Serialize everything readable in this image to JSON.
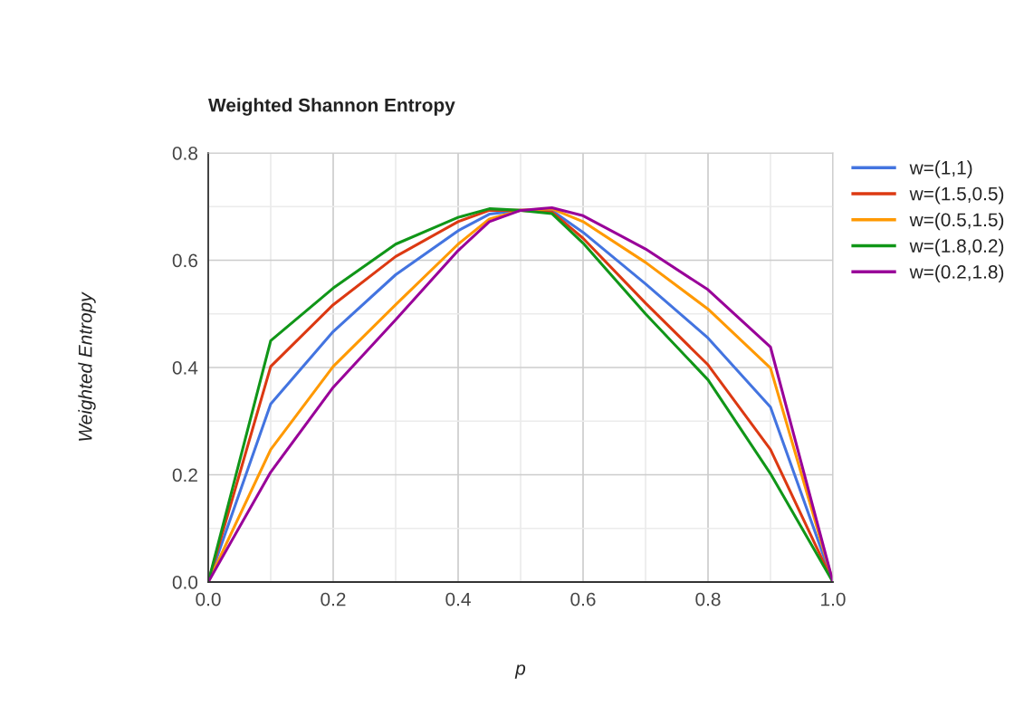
{
  "chart_data": {
    "type": "line",
    "title": "Weighted Shannon Entropy",
    "xlabel": "p",
    "ylabel": "Weighted Entropy",
    "x": [
      0,
      0.1,
      0.2,
      0.3,
      0.4,
      0.45,
      0.5,
      0.55,
      0.6,
      0.7,
      0.8,
      0.9,
      1.0
    ],
    "series": [
      {
        "name": "w=(1,1)",
        "color": "#4374e0",
        "values": [
          0,
          0.332,
          0.467,
          0.573,
          0.655,
          0.686,
          0.693,
          0.693,
          0.652,
          0.556,
          0.455,
          0.326,
          0
        ]
      },
      {
        "name": "w=(1.5,0.5)",
        "color": "#dc3912",
        "values": [
          0,
          0.402,
          0.517,
          0.607,
          0.672,
          0.693,
          0.693,
          0.69,
          0.641,
          0.52,
          0.405,
          0.247,
          0
        ]
      },
      {
        "name": "w=(0.5,1.5)",
        "color": "#ff9900",
        "values": [
          0,
          0.247,
          0.402,
          0.517,
          0.63,
          0.677,
          0.693,
          0.696,
          0.672,
          0.596,
          0.509,
          0.399,
          0
        ]
      },
      {
        "name": "w=(1.8,0.2)",
        "color": "#109618",
        "values": [
          0,
          0.45,
          0.548,
          0.63,
          0.68,
          0.696,
          0.693,
          0.687,
          0.632,
          0.5,
          0.377,
          0.202,
          0
        ]
      },
      {
        "name": "w=(0.2,1.8)",
        "color": "#990099",
        "values": [
          0,
          0.205,
          0.363,
          0.489,
          0.618,
          0.672,
          0.693,
          0.698,
          0.683,
          0.621,
          0.545,
          0.438,
          0
        ]
      }
    ],
    "xlim": [
      0,
      1.0
    ],
    "ylim": [
      0,
      0.8
    ],
    "xticks": [
      {
        "value": 0,
        "label": "0.0"
      },
      {
        "value": 0.1,
        "label": null
      },
      {
        "value": 0.2,
        "label": "0.2"
      },
      {
        "value": 0.3,
        "label": null
      },
      {
        "value": 0.4,
        "label": "0.4"
      },
      {
        "value": 0.5,
        "label": null
      },
      {
        "value": 0.6,
        "label": "0.6"
      },
      {
        "value": 0.7,
        "label": null
      },
      {
        "value": 0.8,
        "label": "0.8"
      },
      {
        "value": 0.9,
        "label": null
      },
      {
        "value": 1.0,
        "label": "1.0"
      }
    ],
    "yticks": [
      {
        "value": 0,
        "label": "0.0"
      },
      {
        "value": 0.1,
        "label": null
      },
      {
        "value": 0.2,
        "label": "0.2"
      },
      {
        "value": 0.3,
        "label": null
      },
      {
        "value": 0.4,
        "label": "0.4"
      },
      {
        "value": 0.5,
        "label": null
      },
      {
        "value": 0.6,
        "label": "0.6"
      },
      {
        "value": 0.7,
        "label": null
      },
      {
        "value": 0.8,
        "label": "0.8"
      }
    ],
    "grid": true,
    "legend": "right",
    "marker": "none",
    "line_style": "solid"
  }
}
